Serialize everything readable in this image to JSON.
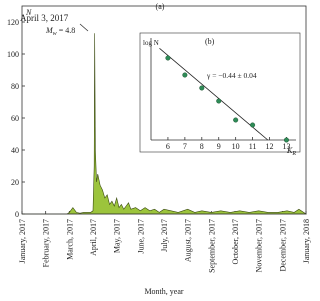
{
  "panel_label": "(a)",
  "chart_data": [
    {
      "type": "area",
      "y_label": "N",
      "x_label": "Month, year",
      "annotation": "April 3, 2017",
      "mw_symbol": "M",
      "mw_sub": "w",
      "mw_value": " = 4.8",
      "color": "#9cc43c",
      "edge_color": "#3a4a10",
      "xlim": [
        0,
        12
      ],
      "ylim": [
        0,
        130
      ],
      "yticks": [
        0,
        20,
        40,
        60,
        80,
        100,
        120
      ],
      "xticks": [
        {
          "value": 0,
          "label": "January, 2017"
        },
        {
          "value": 1,
          "label": "February, 2017"
        },
        {
          "value": 2,
          "label": "March, 2017"
        },
        {
          "value": 3,
          "label": "April, 2017"
        },
        {
          "value": 4,
          "label": "May, 2017"
        },
        {
          "value": 5,
          "label": "June, 2017"
        },
        {
          "value": 6,
          "label": "July, 2017"
        },
        {
          "value": 7,
          "label": "August, 2017"
        },
        {
          "value": 8,
          "label": "September, 2017"
        },
        {
          "value": 9,
          "label": "October, 2017"
        },
        {
          "value": 10,
          "label": "November, 2017"
        },
        {
          "value": 11,
          "label": "December, 2017"
        },
        {
          "value": 12,
          "label": "January, 2018"
        }
      ],
      "x": [
        0,
        1.9,
        2.0,
        2.1,
        2.15,
        2.25,
        2.3,
        2.45,
        2.6,
        2.9,
        3.0,
        3.05,
        3.07,
        3.1,
        3.15,
        3.2,
        3.3,
        3.4,
        3.5,
        3.6,
        3.7,
        3.8,
        3.9,
        4.0,
        4.1,
        4.2,
        4.3,
        4.4,
        4.5,
        4.6,
        4.8,
        5.0,
        5.2,
        5.4,
        5.6,
        5.8,
        6.0,
        6.3,
        6.6,
        7.0,
        7.3,
        7.6,
        8.0,
        8.4,
        8.8,
        9.2,
        9.6,
        10.0,
        10.4,
        10.8,
        11.2,
        11.5,
        11.7,
        11.9,
        12.0
      ],
      "values": [
        0,
        0,
        1,
        3,
        4,
        2,
        1,
        0.5,
        1,
        1,
        2,
        30,
        113,
        40,
        20,
        25,
        18,
        15,
        10,
        12,
        6,
        8,
        5,
        10,
        4,
        6,
        3,
        5,
        7,
        3,
        4,
        2,
        4,
        2,
        3,
        1,
        3,
        2,
        1,
        3,
        1,
        2,
        1,
        2,
        1,
        2,
        1,
        2,
        1,
        1,
        2,
        1,
        3,
        1,
        0
      ]
    },
    {
      "type": "scatter",
      "panel_label": "(b)",
      "y_label": "log N",
      "x_label": "K",
      "x_sub": "R",
      "fit_text": "γ = −0.44 ± 0.04",
      "color": "#2e8b57",
      "xlim": [
        5,
        13.8
      ],
      "ylim": [
        0,
        3
      ],
      "xticks": [
        6,
        7,
        8,
        9,
        10,
        11,
        12,
        13
      ],
      "x": [
        6,
        7,
        8,
        9,
        10,
        11,
        13
      ],
      "values": [
        2.46,
        1.95,
        1.56,
        1.17,
        0.6,
        0.45,
        0
      ],
      "fit_line": {
        "x": [
          5.5,
          11.9
        ],
        "y": [
          2.75,
          0
        ]
      }
    }
  ]
}
